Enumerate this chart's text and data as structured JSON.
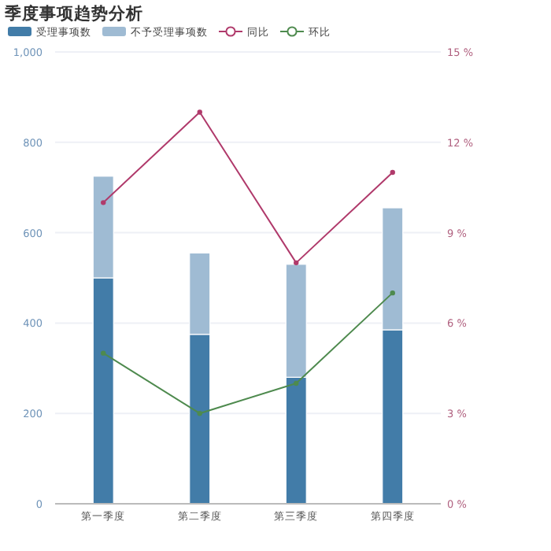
{
  "chart_data": {
    "type": "bar",
    "title": "季度事项趋势分析",
    "categories": [
      "第一季度",
      "第二季度",
      "第三季度",
      "第四季度"
    ],
    "stacked": true,
    "series": [
      {
        "name": "受理事项数",
        "color": "#427ca8",
        "values": [
          500,
          375,
          280,
          385
        ]
      },
      {
        "name": "不予受理事项数",
        "color": "#9fbbd3",
        "values": [
          225,
          180,
          250,
          270
        ]
      },
      {
        "name": "同比",
        "type": "line",
        "axis": "y2",
        "color": "#b03a6b",
        "values": [
          10,
          13,
          8,
          11
        ]
      },
      {
        "name": "环比",
        "type": "line",
        "axis": "y2",
        "color": "#4e8a4e",
        "values": [
          5,
          3,
          4,
          7
        ]
      }
    ],
    "ylim": [
      0,
      1000
    ],
    "yticks": [
      0,
      200,
      400,
      600,
      800,
      {
        "value": 1000,
        "label": "1,000"
      }
    ],
    "y2lim": [
      0,
      15
    ],
    "y2ticks": [
      {
        "value": 0,
        "label": "0 %"
      },
      {
        "value": 3,
        "label": "3 %"
      },
      {
        "value": 6,
        "label": "6 %"
      },
      {
        "value": 9,
        "label": "9 %"
      },
      {
        "value": 12,
        "label": "12 %"
      },
      {
        "value": 15,
        "label": "15 %"
      }
    ],
    "grid": "y",
    "legend": "top left",
    "marker": "circle"
  }
}
